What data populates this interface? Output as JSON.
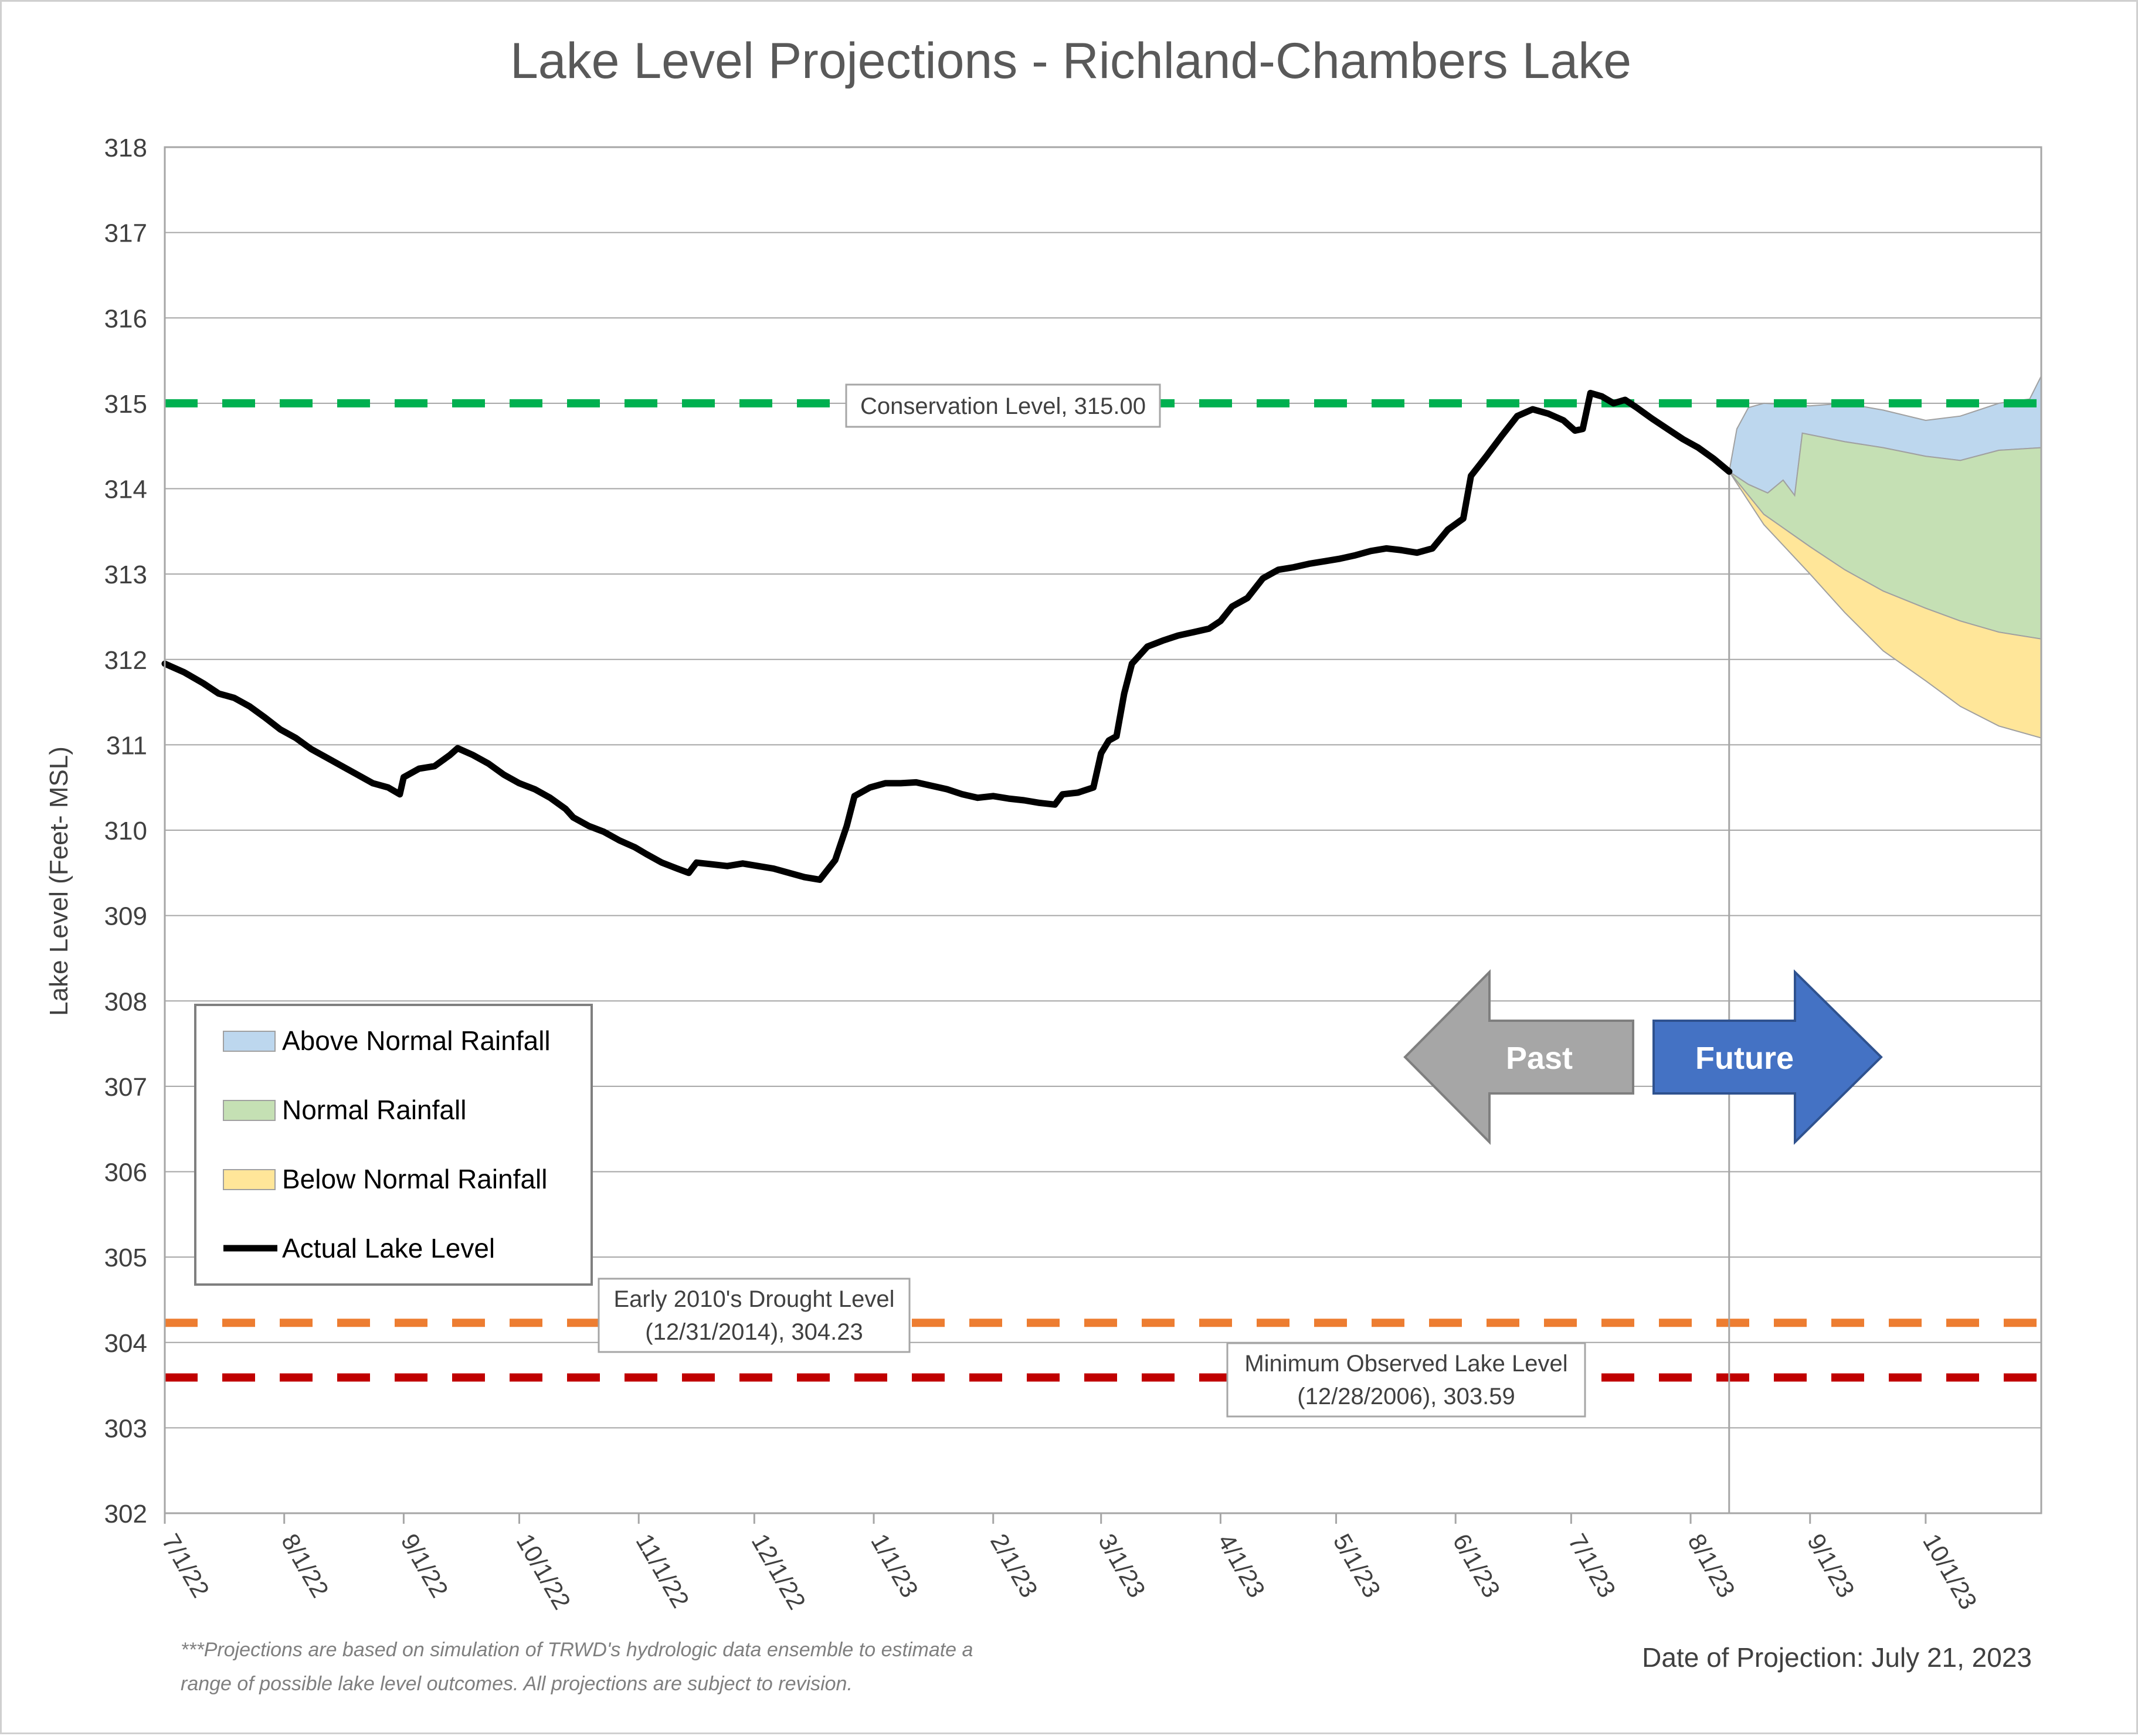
{
  "chart_data": {
    "type": "area",
    "title": "Lake Level Projections - Richland-Chambers Lake",
    "ylabel": "Lake Level (Feet- MSL)",
    "xlabel": "",
    "ylim": [
      302,
      318
    ],
    "yticks": [
      302,
      303,
      304,
      305,
      306,
      307,
      308,
      309,
      310,
      311,
      312,
      313,
      314,
      315,
      316,
      317,
      318
    ],
    "xlim": [
      "2022-07-01",
      "2023-10-31"
    ],
    "xticks": [
      {
        "date": "2022-07-01",
        "label": "7/1/22"
      },
      {
        "date": "2022-08-01",
        "label": "8/1/22"
      },
      {
        "date": "2022-09-01",
        "label": "9/1/22"
      },
      {
        "date": "2022-10-01",
        "label": "10/1/22"
      },
      {
        "date": "2022-11-01",
        "label": "11/1/22"
      },
      {
        "date": "2022-12-01",
        "label": "12/1/22"
      },
      {
        "date": "2023-01-01",
        "label": "1/1/23"
      },
      {
        "date": "2023-02-01",
        "label": "2/1/23"
      },
      {
        "date": "2023-03-01",
        "label": "3/1/23"
      },
      {
        "date": "2023-04-01",
        "label": "4/1/23"
      },
      {
        "date": "2023-05-01",
        "label": "5/1/23"
      },
      {
        "date": "2023-06-01",
        "label": "6/1/23"
      },
      {
        "date": "2023-07-01",
        "label": "7/1/23"
      },
      {
        "date": "2023-08-01",
        "label": "8/1/23"
      },
      {
        "date": "2023-09-01",
        "label": "9/1/23"
      },
      {
        "date": "2023-10-01",
        "label": "10/1/23"
      }
    ],
    "grid": true,
    "legend_position": "bottom-left",
    "projection_date": "2023-07-21",
    "reference_lines": [
      {
        "name": "Conservation Level",
        "value": 315.0,
        "color": "#00b050",
        "label": "Conservation Level, 315.00"
      },
      {
        "name": "Early 2010's Drought Level",
        "value": 304.23,
        "color": "#ed7d31",
        "label_lines": [
          "Early 2010's Drought Level",
          "(12/31/2014), 304.23"
        ]
      },
      {
        "name": "Minimum Observed Lake Level",
        "value": 303.59,
        "color": "#c00000",
        "label_lines": [
          "Minimum Observed Lake Level",
          "(12/28/2006), 303.59"
        ]
      }
    ],
    "series": [
      {
        "name": "Actual Lake Level",
        "color": "#000000",
        "points": [
          [
            "2022-07-01",
            311.95
          ],
          [
            "2022-07-06",
            311.85
          ],
          [
            "2022-07-11",
            311.72
          ],
          [
            "2022-07-15",
            311.6
          ],
          [
            "2022-07-19",
            311.55
          ],
          [
            "2022-07-23",
            311.45
          ],
          [
            "2022-07-27",
            311.32
          ],
          [
            "2022-07-31",
            311.18
          ],
          [
            "2022-08-04",
            311.08
          ],
          [
            "2022-08-08",
            310.95
          ],
          [
            "2022-08-12",
            310.85
          ],
          [
            "2022-08-16",
            310.75
          ],
          [
            "2022-08-20",
            310.65
          ],
          [
            "2022-08-24",
            310.55
          ],
          [
            "2022-08-28",
            310.5
          ],
          [
            "2022-08-31",
            310.42
          ],
          [
            "2022-09-01",
            310.62
          ],
          [
            "2022-09-05",
            310.72
          ],
          [
            "2022-09-09",
            310.75
          ],
          [
            "2022-09-13",
            310.88
          ],
          [
            "2022-09-15",
            310.96
          ],
          [
            "2022-09-19",
            310.88
          ],
          [
            "2022-09-23",
            310.78
          ],
          [
            "2022-09-27",
            310.65
          ],
          [
            "2022-10-01",
            310.55
          ],
          [
            "2022-10-05",
            310.48
          ],
          [
            "2022-10-09",
            310.38
          ],
          [
            "2022-10-13",
            310.25
          ],
          [
            "2022-10-15",
            310.15
          ],
          [
            "2022-10-19",
            310.05
          ],
          [
            "2022-10-23",
            309.98
          ],
          [
            "2022-10-27",
            309.88
          ],
          [
            "2022-10-31",
            309.8
          ],
          [
            "2022-11-03",
            309.72
          ],
          [
            "2022-11-07",
            309.62
          ],
          [
            "2022-11-11",
            309.55
          ],
          [
            "2022-11-14",
            309.5
          ],
          [
            "2022-11-16",
            309.62
          ],
          [
            "2022-11-20",
            309.6
          ],
          [
            "2022-11-24",
            309.58
          ],
          [
            "2022-11-28",
            309.61
          ],
          [
            "2022-12-02",
            309.58
          ],
          [
            "2022-12-06",
            309.55
          ],
          [
            "2022-12-10",
            309.5
          ],
          [
            "2022-12-14",
            309.45
          ],
          [
            "2022-12-18",
            309.42
          ],
          [
            "2022-12-22",
            309.65
          ],
          [
            "2022-12-25",
            310.05
          ],
          [
            "2022-12-27",
            310.4
          ],
          [
            "2022-12-31",
            310.5
          ],
          [
            "2023-01-04",
            310.55
          ],
          [
            "2023-01-08",
            310.55
          ],
          [
            "2023-01-12",
            310.56
          ],
          [
            "2023-01-16",
            310.52
          ],
          [
            "2023-01-20",
            310.48
          ],
          [
            "2023-01-24",
            310.42
          ],
          [
            "2023-01-28",
            310.38
          ],
          [
            "2023-02-01",
            310.4
          ],
          [
            "2023-02-05",
            310.37
          ],
          [
            "2023-02-09",
            310.35
          ],
          [
            "2023-02-13",
            310.32
          ],
          [
            "2023-02-17",
            310.3
          ],
          [
            "2023-02-19",
            310.42
          ],
          [
            "2023-02-23",
            310.44
          ],
          [
            "2023-02-27",
            310.5
          ],
          [
            "2023-03-01",
            310.9
          ],
          [
            "2023-03-03",
            311.05
          ],
          [
            "2023-03-05",
            311.1
          ],
          [
            "2023-03-07",
            311.6
          ],
          [
            "2023-03-09",
            311.95
          ],
          [
            "2023-03-13",
            312.15
          ],
          [
            "2023-03-17",
            312.22
          ],
          [
            "2023-03-21",
            312.28
          ],
          [
            "2023-03-25",
            312.32
          ],
          [
            "2023-03-29",
            312.36
          ],
          [
            "2023-04-01",
            312.45
          ],
          [
            "2023-04-04",
            312.62
          ],
          [
            "2023-04-08",
            312.72
          ],
          [
            "2023-04-12",
            312.95
          ],
          [
            "2023-04-16",
            313.05
          ],
          [
            "2023-04-20",
            313.08
          ],
          [
            "2023-04-24",
            313.12
          ],
          [
            "2023-04-28",
            313.15
          ],
          [
            "2023-05-02",
            313.18
          ],
          [
            "2023-05-06",
            313.22
          ],
          [
            "2023-05-10",
            313.27
          ],
          [
            "2023-05-14",
            313.3
          ],
          [
            "2023-05-18",
            313.28
          ],
          [
            "2023-05-22",
            313.25
          ],
          [
            "2023-05-26",
            313.3
          ],
          [
            "2023-05-30",
            313.52
          ],
          [
            "2023-06-03",
            313.65
          ],
          [
            "2023-06-05",
            314.15
          ],
          [
            "2023-06-09",
            314.38
          ],
          [
            "2023-06-13",
            314.62
          ],
          [
            "2023-06-17",
            314.85
          ],
          [
            "2023-06-21",
            314.93
          ],
          [
            "2023-06-25",
            314.88
          ],
          [
            "2023-06-29",
            314.8
          ],
          [
            "2023-07-02",
            314.68
          ],
          [
            "2023-07-04",
            314.7
          ],
          [
            "2023-07-06",
            315.12
          ],
          [
            "2023-07-09",
            315.08
          ],
          [
            "2023-07-12",
            315.0
          ],
          [
            "2023-07-15",
            315.04
          ],
          [
            "2023-07-18",
            314.95
          ],
          [
            "2023-07-22",
            314.82
          ],
          [
            "2023-07-26",
            314.7
          ],
          [
            "2023-07-30",
            314.58
          ],
          [
            "2023-08-03",
            314.48
          ],
          [
            "2023-08-07",
            314.35
          ],
          [
            "2023-08-11",
            314.2
          ]
        ]
      },
      {
        "name": "Above Normal Rainfall",
        "color": "#bdd7ee",
        "upper": [
          [
            "2023-08-11",
            314.2
          ],
          [
            "2023-08-13",
            314.7
          ],
          [
            "2023-08-16",
            314.95
          ],
          [
            "2023-08-20",
            315.0
          ],
          [
            "2023-09-01",
            314.97
          ],
          [
            "2023-09-10",
            315.0
          ],
          [
            "2023-09-20",
            314.92
          ],
          [
            "2023-10-01",
            314.8
          ],
          [
            "2023-10-10",
            314.85
          ],
          [
            "2023-10-20",
            315.0
          ],
          [
            "2023-10-28",
            315.05
          ],
          [
            "2023-10-31",
            315.32
          ]
        ],
        "lower": [
          [
            "2023-08-11",
            314.2
          ],
          [
            "2023-08-16",
            314.05
          ],
          [
            "2023-08-21",
            313.95
          ],
          [
            "2023-08-25",
            314.1
          ],
          [
            "2023-08-28",
            313.92
          ],
          [
            "2023-08-30",
            314.65
          ],
          [
            "2023-09-10",
            314.55
          ],
          [
            "2023-09-20",
            314.48
          ],
          [
            "2023-10-01",
            314.38
          ],
          [
            "2023-10-10",
            314.33
          ],
          [
            "2023-10-20",
            314.45
          ],
          [
            "2023-10-31",
            314.48
          ]
        ]
      },
      {
        "name": "Normal Rainfall",
        "color": "#c5e0b4",
        "upper": [
          [
            "2023-08-11",
            314.2
          ],
          [
            "2023-08-16",
            314.05
          ],
          [
            "2023-08-21",
            313.95
          ],
          [
            "2023-08-25",
            314.1
          ],
          [
            "2023-08-28",
            313.92
          ],
          [
            "2023-08-30",
            314.65
          ],
          [
            "2023-09-10",
            314.55
          ],
          [
            "2023-09-20",
            314.48
          ],
          [
            "2023-10-01",
            314.38
          ],
          [
            "2023-10-10",
            314.33
          ],
          [
            "2023-10-20",
            314.45
          ],
          [
            "2023-10-31",
            314.48
          ]
        ],
        "lower": [
          [
            "2023-08-11",
            314.2
          ],
          [
            "2023-08-20",
            313.7
          ],
          [
            "2023-09-01",
            313.32
          ],
          [
            "2023-09-10",
            313.05
          ],
          [
            "2023-09-20",
            312.8
          ],
          [
            "2023-10-01",
            312.6
          ],
          [
            "2023-10-10",
            312.45
          ],
          [
            "2023-10-20",
            312.32
          ],
          [
            "2023-10-31",
            312.24
          ]
        ]
      },
      {
        "name": "Below Normal Rainfall",
        "color": "#ffe699",
        "upper": [
          [
            "2023-08-11",
            314.2
          ],
          [
            "2023-08-20",
            313.7
          ],
          [
            "2023-09-01",
            313.32
          ],
          [
            "2023-09-10",
            313.05
          ],
          [
            "2023-09-20",
            312.8
          ],
          [
            "2023-10-01",
            312.6
          ],
          [
            "2023-10-10",
            312.45
          ],
          [
            "2023-10-20",
            312.32
          ],
          [
            "2023-10-31",
            312.24
          ]
        ],
        "lower": [
          [
            "2023-08-11",
            314.2
          ],
          [
            "2023-08-20",
            313.58
          ],
          [
            "2023-09-01",
            313.0
          ],
          [
            "2023-09-10",
            312.55
          ],
          [
            "2023-09-20",
            312.1
          ],
          [
            "2023-10-01",
            311.75
          ],
          [
            "2023-10-10",
            311.45
          ],
          [
            "2023-10-20",
            311.22
          ],
          [
            "2023-10-31",
            311.08
          ]
        ]
      }
    ],
    "legend": [
      {
        "label": "Above Normal Rainfall",
        "kind": "swatch",
        "color": "#bdd7ee"
      },
      {
        "label": "Normal Rainfall",
        "kind": "swatch",
        "color": "#c5e0b4"
      },
      {
        "label": "Below Normal Rainfall",
        "kind": "swatch",
        "color": "#ffe699"
      },
      {
        "label": "Actual Lake Level",
        "kind": "line",
        "color": "#000000"
      }
    ],
    "arrows": [
      {
        "label": "Past",
        "direction": "left",
        "color": "#a6a6a6"
      },
      {
        "label": "Future",
        "direction": "right",
        "color": "#4472c4"
      }
    ],
    "footnote_lines": [
      "***Projections are based on simulation of TRWD's hydrologic data ensemble to estimate a",
      "range of possible lake level outcomes.  All projections are subject to revision."
    ],
    "projection_label": "Date of Projection: July 21, 2023"
  }
}
